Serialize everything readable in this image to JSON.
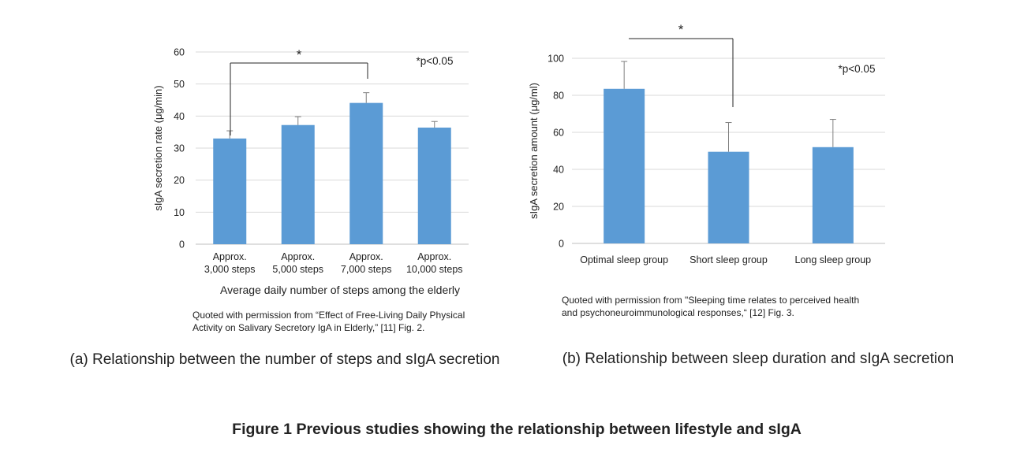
{
  "figure_caption": "Figure 1  Previous studies showing the relationship between lifestyle and sIgA",
  "colors": {
    "bar": "#5b9bd5",
    "grid": "#d9d9d9",
    "axis": "#bfbfbf",
    "error": "#7f7f7f",
    "bracket": "#262626"
  },
  "chart_data": [
    {
      "type": "bar",
      "ylabel": "sIgA secretion rate (μg/min)",
      "xlabel": "Average daily number of steps among the elderly",
      "ylim": [
        0,
        60
      ],
      "yticks": [
        0,
        10,
        20,
        30,
        40,
        50,
        60
      ],
      "grid": true,
      "categories": [
        [
          "Approx.",
          "3,000 steps"
        ],
        [
          "Approx.",
          "5,000 steps"
        ],
        [
          "Approx.",
          "7,000 steps"
        ],
        [
          "Approx.",
          "10,000 steps"
        ]
      ],
      "values": [
        33,
        37.2,
        44.1,
        36.4
      ],
      "errors": [
        2.4,
        2.6,
        3.2,
        1.9
      ],
      "significance_label": "*p<0.05",
      "bracket": {
        "from": 0,
        "to": 2,
        "label": "*"
      },
      "source": [
        "Quoted with permission from “Effect of Free-Living Daily Physical",
        "Activity on Salivary Secretory IgA in Elderly,” [11] Fig. 2."
      ],
      "subtitle": "(a) Relationship between the number of steps and sIgA secretion"
    },
    {
      "type": "bar",
      "ylabel": "sIgA secretion amount (μg/ml)",
      "xlabel": "",
      "ylim": [
        0,
        100
      ],
      "yticks": [
        0,
        20,
        40,
        60,
        80,
        100
      ],
      "grid": true,
      "categories": [
        [
          "Optimal sleep group"
        ],
        [
          "Short sleep group"
        ],
        [
          "Long sleep group"
        ]
      ],
      "values": [
        83.5,
        49.5,
        52
      ],
      "errors": [
        14.8,
        15.8,
        15
      ],
      "significance_label": "*p<0.05",
      "bracket": {
        "from": 0,
        "to": 1,
        "label": "*"
      },
      "source": [
        "Quoted with permission from \"Sleeping time relates to perceived health",
        "and psychoneuroimmunological responses,“ [12] Fig. 3."
      ],
      "subtitle": "(b) Relationship between sleep duration and sIgA secretion"
    }
  ]
}
